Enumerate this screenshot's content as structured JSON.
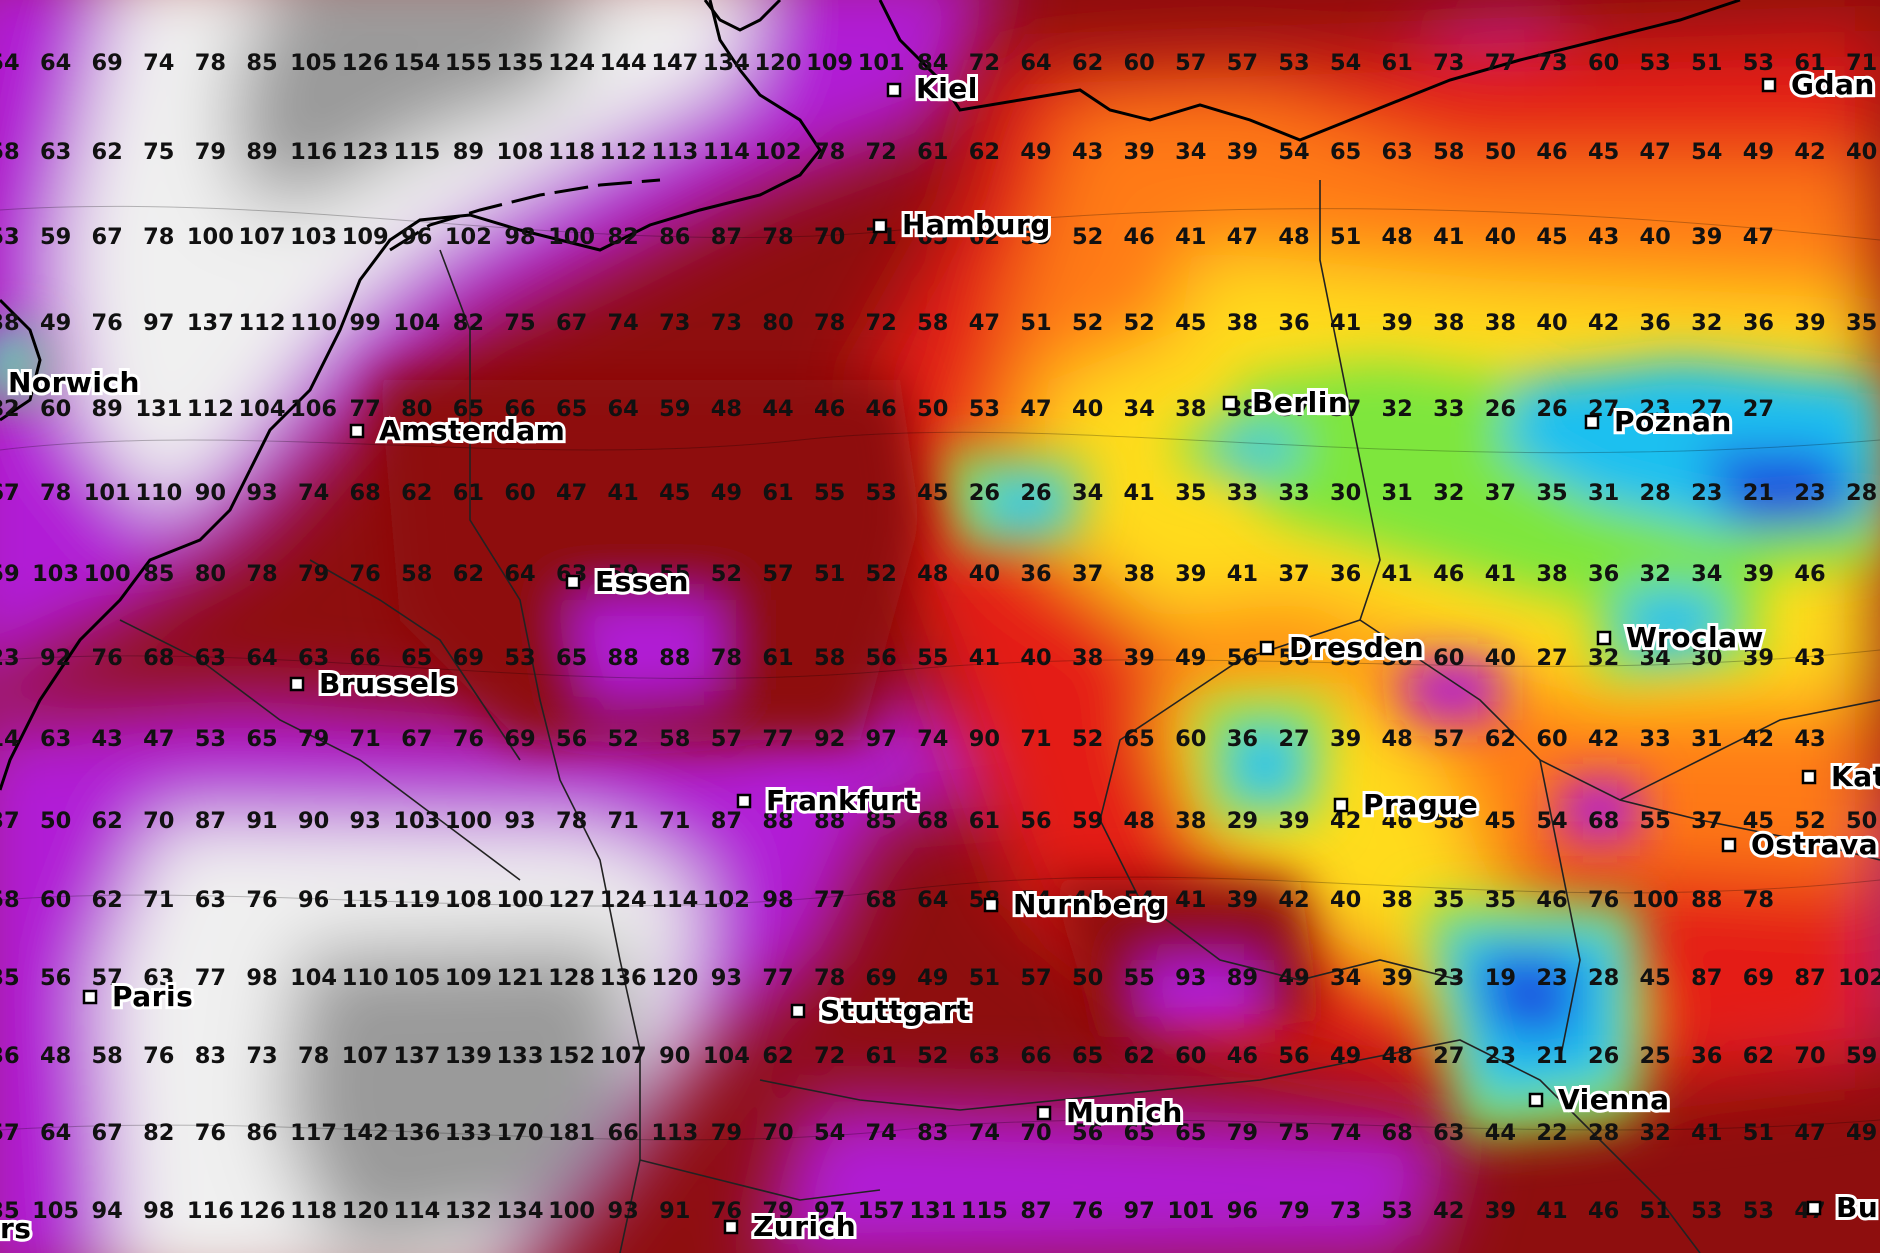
{
  "legend_palette": {
    "grey_high": "#9a9a9a",
    "white": "#f2f2f2",
    "violet": "#b11fd6",
    "dark_red": "#8e0e0e",
    "red": "#e41b12",
    "orange": "#ff7a12",
    "yellow": "#ffdc1c",
    "green": "#7ee63e",
    "cyan": "#1fc0f0",
    "blue": "#1f4fe0"
  },
  "cities": [
    {
      "name": "Kiel"
    },
    {
      "name": "Hamburg"
    },
    {
      "name": "Norwich"
    },
    {
      "name": "Amsterdam"
    },
    {
      "name": "Berlin"
    },
    {
      "name": "Poznan"
    },
    {
      "name": "Essen"
    },
    {
      "name": "Brussels"
    },
    {
      "name": "Dresden"
    },
    {
      "name": "Wroclaw"
    },
    {
      "name": "Frankfurt"
    },
    {
      "name": "Prague"
    },
    {
      "name": "Nurnberg"
    },
    {
      "name": "Ostrava"
    },
    {
      "name": "Paris"
    },
    {
      "name": "Stuttgart"
    },
    {
      "name": "Vienna"
    },
    {
      "name": "Munich"
    },
    {
      "name": "Zurich"
    },
    {
      "name": "Gdan"
    },
    {
      "name": "Kat"
    },
    {
      "name": "Bu"
    },
    {
      "name": "rs"
    }
  ],
  "grid_values": [
    [
      "54",
      "64",
      "69",
      "74",
      "78",
      "85",
      "105",
      "126",
      "154",
      "155",
      "135",
      "124",
      "144",
      "147",
      "134",
      "120",
      "109",
      "101",
      "84",
      "72",
      "64",
      "62",
      "60",
      "57",
      "57",
      "53",
      "54",
      "61",
      "73",
      "77",
      "73",
      "60",
      "53",
      "51",
      "53",
      "61",
      "71"
    ],
    [
      "58",
      "63",
      "62",
      "75",
      "79",
      "89",
      "116",
      "123",
      "115",
      "89",
      "108",
      "118",
      "112",
      "113",
      "114",
      "102",
      "78",
      "72",
      "61",
      "62",
      "49",
      "43",
      "39",
      "34",
      "39",
      "54",
      "65",
      "63",
      "58",
      "50",
      "46",
      "45",
      "47",
      "54",
      "49",
      "42",
      "40"
    ],
    [
      "53",
      "59",
      "67",
      "78",
      "100",
      "107",
      "103",
      "109",
      "96",
      "102",
      "98",
      "100",
      "82",
      "86",
      "87",
      "78",
      "70",
      "71",
      "65",
      "62",
      "59",
      "52",
      "46",
      "41",
      "47",
      "48",
      "51",
      "48",
      "41",
      "40",
      "45",
      "43",
      "40",
      "39",
      "47"
    ],
    [
      "38",
      "49",
      "76",
      "97",
      "137",
      "112",
      "110",
      "99",
      "104",
      "82",
      "75",
      "67",
      "74",
      "73",
      "73",
      "80",
      "78",
      "72",
      "58",
      "47",
      "51",
      "52",
      "52",
      "45",
      "38",
      "36",
      "41",
      "39",
      "38",
      "38",
      "40",
      "42",
      "36",
      "32",
      "36",
      "39",
      "35"
    ],
    [
      "82",
      "60",
      "89",
      "131",
      "112",
      "104",
      "106",
      "77",
      "80",
      "65",
      "66",
      "65",
      "64",
      "59",
      "48",
      "44",
      "46",
      "46",
      "50",
      "53",
      "47",
      "40",
      "34",
      "38",
      "38",
      "37",
      "37",
      "32",
      "33",
      "26",
      "26",
      "27",
      "23",
      "27",
      "27"
    ],
    [
      "67",
      "78",
      "101",
      "110",
      "90",
      "93",
      "74",
      "68",
      "62",
      "61",
      "60",
      "47",
      "41",
      "45",
      "49",
      "61",
      "55",
      "53",
      "45",
      "26",
      "26",
      "34",
      "41",
      "35",
      "33",
      "33",
      "30",
      "31",
      "32",
      "37",
      "35",
      "31",
      "28",
      "23",
      "21",
      "23",
      "28"
    ],
    [
      "59",
      "103",
      "100",
      "85",
      "80",
      "78",
      "79",
      "76",
      "58",
      "62",
      "64",
      "63",
      "59",
      "55",
      "52",
      "57",
      "51",
      "52",
      "48",
      "40",
      "36",
      "37",
      "38",
      "39",
      "41",
      "37",
      "36",
      "41",
      "46",
      "41",
      "38",
      "36",
      "32",
      "34",
      "39",
      "46"
    ],
    [
      "23",
      "92",
      "76",
      "68",
      "63",
      "64",
      "63",
      "66",
      "65",
      "69",
      "53",
      "65",
      "88",
      "88",
      "78",
      "61",
      "58",
      "56",
      "55",
      "41",
      "40",
      "38",
      "39",
      "49",
      "56",
      "58",
      "55",
      "58",
      "60",
      "40",
      "27",
      "32",
      "34",
      "30",
      "39",
      "43"
    ],
    [
      "14",
      "63",
      "43",
      "47",
      "53",
      "65",
      "79",
      "71",
      "67",
      "76",
      "69",
      "56",
      "52",
      "58",
      "57",
      "77",
      "92",
      "97",
      "74",
      "90",
      "71",
      "52",
      "65",
      "60",
      "36",
      "27",
      "39",
      "48",
      "57",
      "62",
      "60",
      "42",
      "33",
      "31",
      "42",
      "43"
    ],
    [
      "37",
      "50",
      "62",
      "70",
      "87",
      "91",
      "90",
      "93",
      "103",
      "100",
      "93",
      "78",
      "71",
      "71",
      "87",
      "88",
      "88",
      "85",
      "68",
      "61",
      "56",
      "59",
      "48",
      "38",
      "29",
      "39",
      "42",
      "46",
      "58",
      "45",
      "54",
      "68",
      "55",
      "37",
      "45",
      "52",
      "50"
    ],
    [
      "58",
      "60",
      "62",
      "71",
      "63",
      "76",
      "96",
      "115",
      "119",
      "108",
      "100",
      "127",
      "124",
      "114",
      "102",
      "98",
      "77",
      "68",
      "64",
      "58",
      "54",
      "40",
      "54",
      "41",
      "39",
      "42",
      "40",
      "38",
      "35",
      "35",
      "46",
      "76",
      "100",
      "88",
      "78"
    ],
    [
      "35",
      "56",
      "57",
      "63",
      "77",
      "98",
      "104",
      "110",
      "105",
      "109",
      "121",
      "128",
      "136",
      "120",
      "93",
      "77",
      "78",
      "69",
      "49",
      "51",
      "57",
      "50",
      "55",
      "93",
      "89",
      "49",
      "34",
      "39",
      "23",
      "19",
      "23",
      "28",
      "45",
      "87",
      "69",
      "87",
      "102"
    ],
    [
      "36",
      "48",
      "58",
      "76",
      "83",
      "73",
      "78",
      "107",
      "137",
      "139",
      "133",
      "152",
      "107",
      "90",
      "104",
      "62",
      "72",
      "61",
      "52",
      "63",
      "66",
      "65",
      "62",
      "60",
      "46",
      "56",
      "49",
      "48",
      "27",
      "23",
      "21",
      "26",
      "25",
      "36",
      "62",
      "70",
      "59"
    ],
    [
      "57",
      "64",
      "67",
      "82",
      "76",
      "86",
      "117",
      "142",
      "136",
      "133",
      "170",
      "181",
      "66",
      "113",
      "79",
      "70",
      "54",
      "74",
      "83",
      "74",
      "70",
      "56",
      "65",
      "65",
      "79",
      "75",
      "74",
      "68",
      "63",
      "44",
      "22",
      "28",
      "32",
      "41",
      "51",
      "47",
      "49"
    ],
    [
      "35",
      "105",
      "94",
      "98",
      "116",
      "126",
      "118",
      "120",
      "114",
      "132",
      "134",
      "100",
      "93",
      "91",
      "76",
      "79",
      "97",
      "157",
      "131",
      "115",
      "87",
      "76",
      "97",
      "101",
      "96",
      "79",
      "73",
      "53",
      "42",
      "39",
      "41",
      "46",
      "51",
      "53",
      "53",
      "47"
    ]
  ]
}
